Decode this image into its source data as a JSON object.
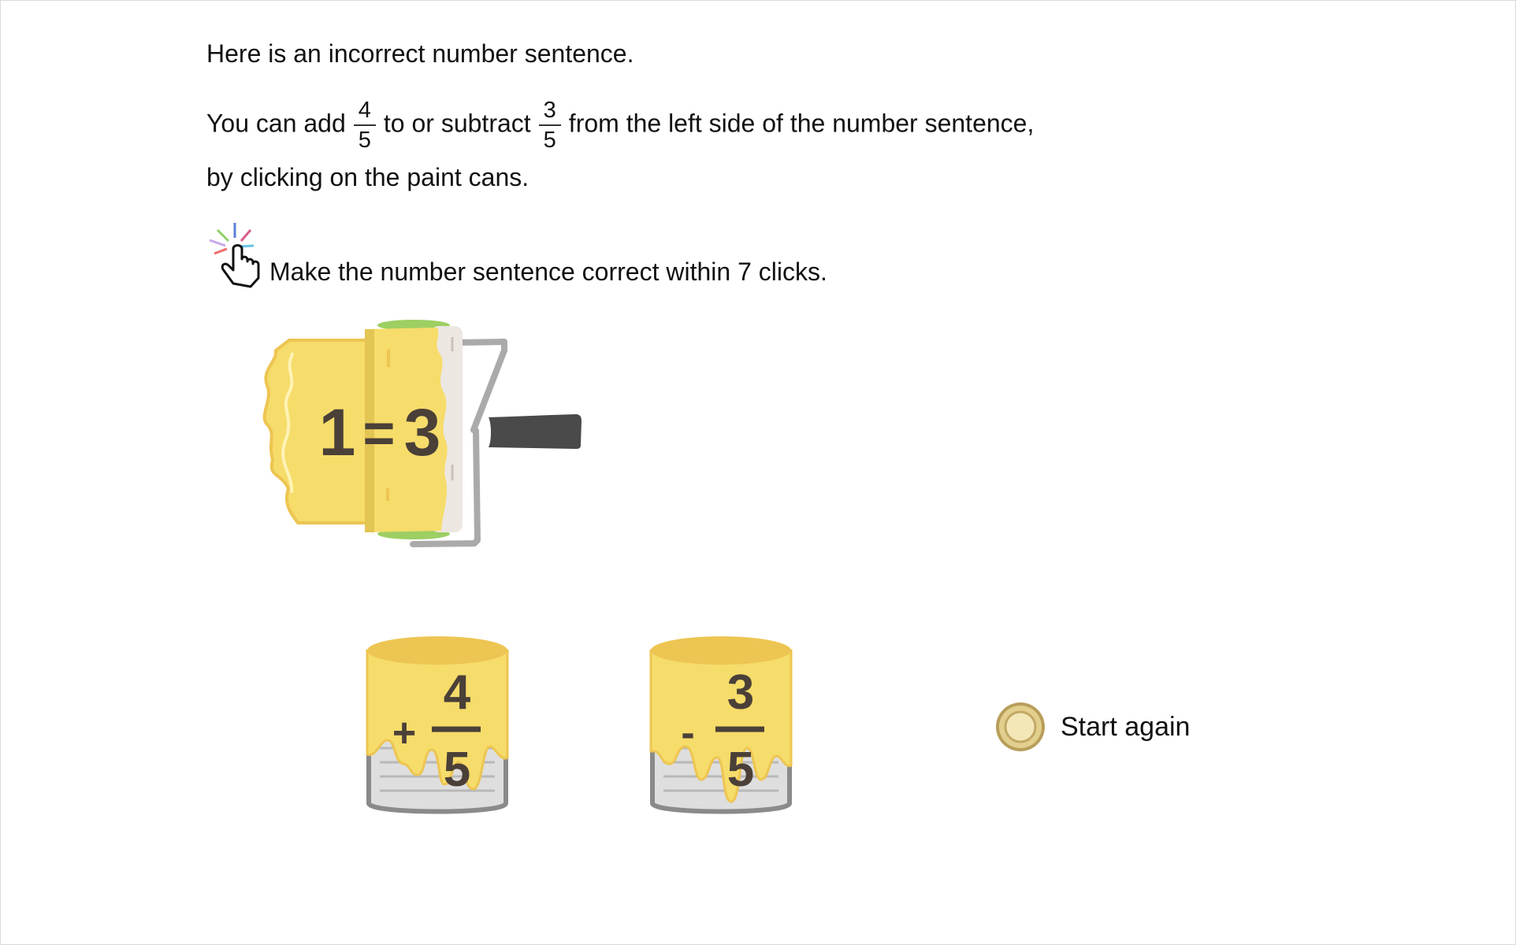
{
  "instructions": {
    "line1": "Here is an incorrect number sentence.",
    "line2_a": "You can add",
    "frac_add": {
      "num": "4",
      "den": "5"
    },
    "line2_b": "to or subtract",
    "frac_sub": {
      "num": "3",
      "den": "5"
    },
    "line2_c": "from the left side of the number sentence,",
    "line3": "by clicking on the paint cans.",
    "task": "Make the number sentence correct within 7 clicks."
  },
  "sentence": {
    "left": "1",
    "eq": "=",
    "right": "3"
  },
  "cans": [
    {
      "sign": "+",
      "num": "4",
      "den": "5"
    },
    {
      "sign": "-",
      "num": "3",
      "den": "5"
    }
  ],
  "controls": {
    "start_again": "Start again"
  },
  "colors": {
    "paint": "#F6DC6A",
    "paint_dark": "#EDC552",
    "digits": "#4a4038",
    "handle": "#4a4a4a",
    "can": "#d9d9d9"
  },
  "icons": {
    "task": "hand-pointer-click-icon",
    "reset": "radio-reset-icon"
  }
}
